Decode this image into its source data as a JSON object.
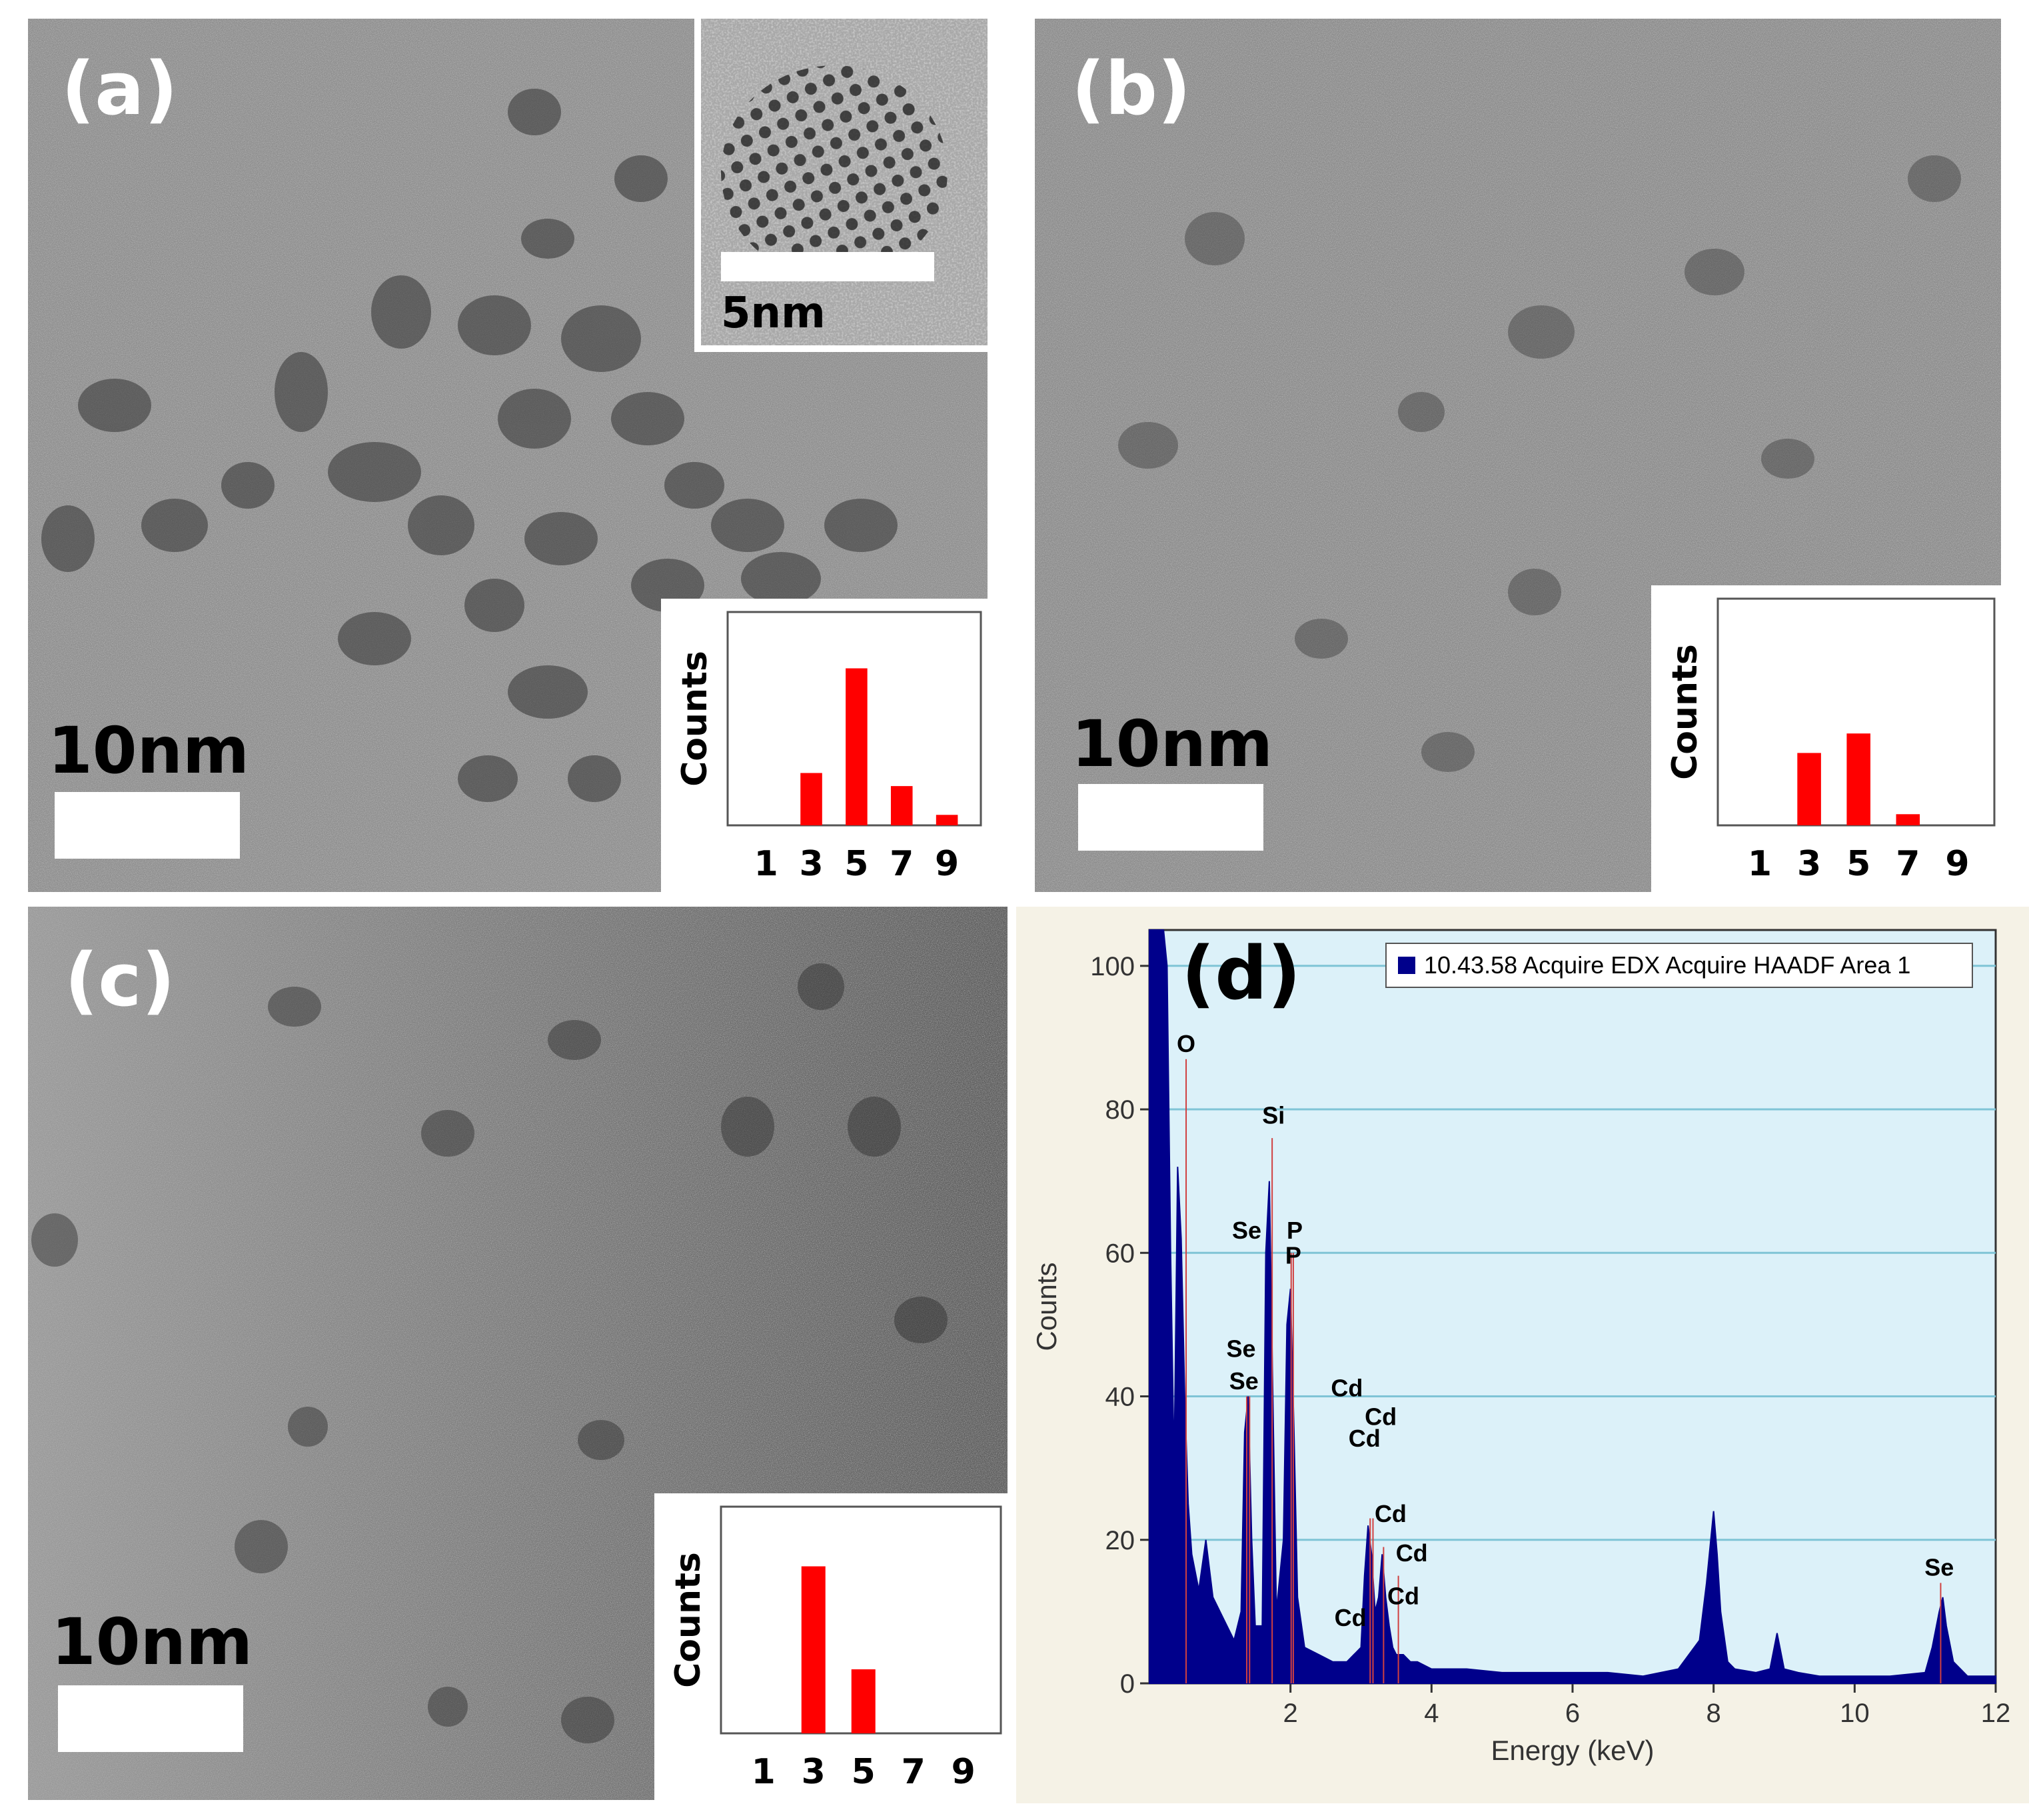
{
  "panels": {
    "a": {
      "label": "(a)",
      "scale_bar": "10nm",
      "inset_scale_bar": "5nm",
      "histogram": {
        "ylabel": "Counts",
        "ticks": [
          "1",
          "3",
          "5",
          "7",
          "9"
        ],
        "values": [
          0,
          2,
          6,
          1.5,
          0.4
        ],
        "color": "#ff0000"
      }
    },
    "b": {
      "label": "(b)",
      "scale_bar": "10nm",
      "histogram": {
        "ylabel": "Counts",
        "ticks": [
          "1",
          "3",
          "5",
          "7",
          "9"
        ],
        "values": [
          0,
          2.6,
          3.3,
          0.4,
          0
        ],
        "color": "#ff0000"
      }
    },
    "c": {
      "label": "(c)",
      "scale_bar": "10nm",
      "histogram": {
        "ylabel": "Counts",
        "ticks": [
          "1",
          "3",
          "5",
          "7",
          "9"
        ],
        "values": [
          0,
          6,
          2.3,
          0,
          0
        ],
        "color": "#ff0000"
      }
    },
    "d": {
      "label": "(d)"
    }
  },
  "chart_data": [
    {
      "type": "bar",
      "title": "",
      "xlabel": "",
      "ylabel": "Counts",
      "categories": [
        "1",
        "3",
        "5",
        "7",
        "9"
      ],
      "values": [
        0,
        2,
        6,
        1.5,
        0.4
      ]
    },
    {
      "type": "bar",
      "title": "",
      "xlabel": "",
      "ylabel": "Counts",
      "categories": [
        "1",
        "3",
        "5",
        "7",
        "9"
      ],
      "values": [
        0,
        2.6,
        3.3,
        0.4,
        0
      ]
    },
    {
      "type": "bar",
      "title": "",
      "xlabel": "",
      "ylabel": "Counts",
      "categories": [
        "1",
        "3",
        "5",
        "7",
        "9"
      ],
      "values": [
        0,
        6,
        2.3,
        0,
        0
      ]
    },
    {
      "type": "area",
      "title": "",
      "xlabel": "Energy (keV)",
      "ylabel": "Counts",
      "xlim": [
        0,
        12
      ],
      "ylim": [
        0,
        105
      ],
      "xticks": [
        "2",
        "4",
        "6",
        "8",
        "10",
        "12"
      ],
      "yticks": [
        "0",
        "20",
        "40",
        "60",
        "80",
        "100"
      ],
      "grid": true,
      "legend": {
        "placement": "top-right",
        "entries": [
          "10.43.58 Acquire EDX Acquire HAADF Area 1"
        ]
      },
      "series": [
        {
          "name": "10.43.58 Acquire EDX Acquire HAADF Area 1",
          "color": "#00008b",
          "x": [
            0.0,
            0.05,
            0.1,
            0.15,
            0.2,
            0.25,
            0.3,
            0.35,
            0.4,
            0.45,
            0.5,
            0.55,
            0.6,
            0.7,
            0.8,
            0.9,
            1.0,
            1.1,
            1.2,
            1.3,
            1.35,
            1.4,
            1.45,
            1.5,
            1.6,
            1.65,
            1.7,
            1.75,
            1.8,
            1.9,
            1.95,
            2.0,
            2.05,
            2.1,
            2.2,
            2.4,
            2.6,
            2.8,
            3.0,
            3.05,
            3.1,
            3.15,
            3.2,
            3.25,
            3.3,
            3.35,
            3.4,
            3.45,
            3.5,
            3.6,
            3.7,
            3.8,
            4.0,
            4.5,
            5.0,
            5.5,
            6.0,
            6.5,
            7.0,
            7.5,
            7.8,
            7.9,
            8.0,
            8.05,
            8.1,
            8.2,
            8.3,
            8.6,
            8.8,
            8.9,
            9.0,
            9.2,
            9.5,
            10.0,
            10.5,
            11.0,
            11.1,
            11.2,
            11.25,
            11.3,
            11.4,
            11.6,
            12.0
          ],
          "y": [
            105,
            105,
            105,
            105,
            105,
            100,
            60,
            30,
            72,
            62,
            40,
            25,
            18,
            13,
            20,
            12,
            10,
            8,
            6,
            10,
            35,
            40,
            20,
            8,
            8,
            60,
            70,
            40,
            10,
            20,
            50,
            55,
            35,
            12,
            5,
            4,
            3,
            3,
            5,
            15,
            22,
            18,
            10,
            12,
            18,
            12,
            8,
            5,
            4,
            4,
            3,
            3,
            2,
            2,
            1.5,
            1.5,
            1.5,
            1.5,
            1,
            2,
            6,
            14,
            24,
            18,
            10,
            3,
            2,
            1.5,
            2,
            7,
            2,
            1.5,
            1,
            1,
            1,
            1.5,
            5,
            10,
            12,
            8,
            3,
            1,
            1
          ]
        }
      ],
      "annotations": [
        {
          "text": "O",
          "x": 0.52,
          "y": 87
        },
        {
          "text": "Si",
          "x": 1.74,
          "y": 76
        },
        {
          "text": "Se",
          "x": 1.38,
          "y": 40
        },
        {
          "text": "Se",
          "x": 1.3,
          "y": 44
        },
        {
          "text": "Se",
          "x": 1.42,
          "y": 60
        },
        {
          "text": "P",
          "x": 2.01,
          "y": 60
        },
        {
          "text": "P",
          "x": 2.04,
          "y": 56
        },
        {
          "text": "Cd",
          "x": 3.13,
          "y": 23
        },
        {
          "text": "Cd",
          "x": 3.17,
          "y": 27
        },
        {
          "text": "Cd",
          "x": 2.8,
          "y": 40
        },
        {
          "text": "Cd",
          "x": 3.32,
          "y": 19
        },
        {
          "text": "Cd",
          "x": 3.53,
          "y": 15
        },
        {
          "text": "Cd",
          "x": 3.46,
          "y": 10
        },
        {
          "text": "Cd",
          "x": 2.87,
          "y": 8
        },
        {
          "text": "Se",
          "x": 11.22,
          "y": 14
        }
      ]
    }
  ]
}
